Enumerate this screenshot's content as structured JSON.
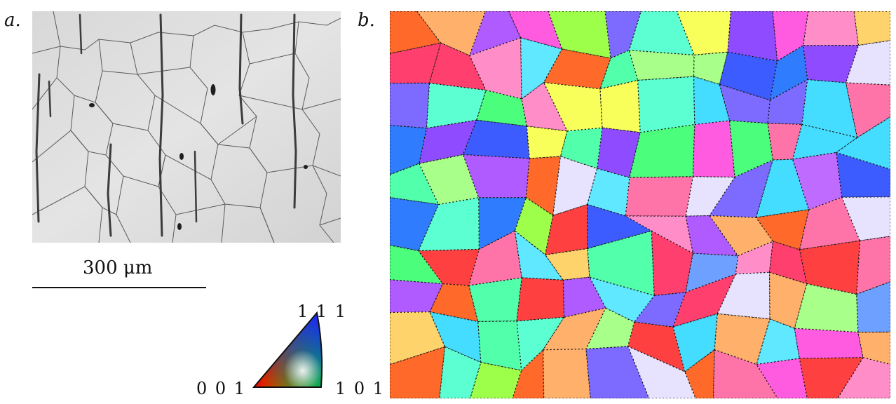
{
  "panels": {
    "a": {
      "label": "a."
    },
    "b": {
      "label": "b."
    }
  },
  "scale_bar": {
    "text": "300 μm"
  },
  "ipf_key": {
    "corner_111": "1 1 1",
    "corner_001": "0 0 1",
    "corner_101": "1 0 1"
  }
}
